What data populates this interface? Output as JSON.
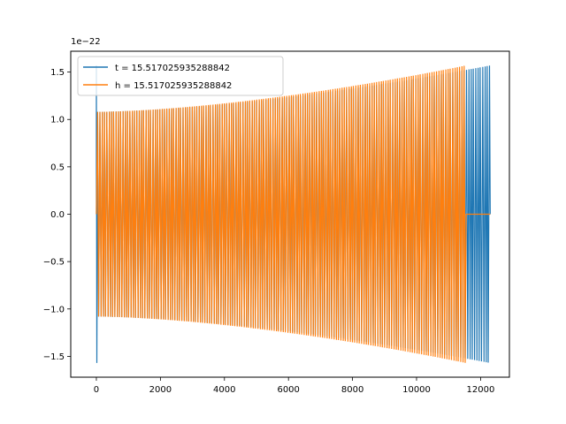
{
  "chart_data": {
    "type": "line",
    "title": "",
    "xlabel": "",
    "ylabel": "",
    "y_offset_label": "1e−22",
    "xlim": [
      -800,
      12900
    ],
    "ylim": [
      -1.72,
      1.72
    ],
    "x_ticks": [
      0,
      2000,
      4000,
      6000,
      8000,
      10000,
      12000
    ],
    "x_tick_labels": [
      "0",
      "2000",
      "4000",
      "6000",
      "8000",
      "10000",
      "12000"
    ],
    "y_ticks": [
      -1.5,
      -1.0,
      -0.5,
      0.0,
      0.5,
      1.0,
      1.5
    ],
    "y_tick_labels": [
      "−1.5",
      "−1.0",
      "−0.5",
      "0.0",
      "0.5",
      "1.0",
      "1.5"
    ],
    "grid": false,
    "legend_position": "top-left",
    "series": [
      {
        "name": "t = 15.517025935288842",
        "color": "#1f77b4",
        "x_start": 0,
        "x_end": 12300,
        "amplitude_start": 1.08,
        "amplitude_end": 1.57,
        "initial_spike": 1.57,
        "tail_zero_after": null
      },
      {
        "name": "h = 15.517025935288842",
        "color": "#ff7f0e",
        "x_start": 0,
        "x_end": 11550,
        "amplitude_start": 1.08,
        "amplitude_end": 1.57,
        "initial_spike": null,
        "tail_zero_after": 11550,
        "tail_zero_end": 12300
      }
    ]
  }
}
